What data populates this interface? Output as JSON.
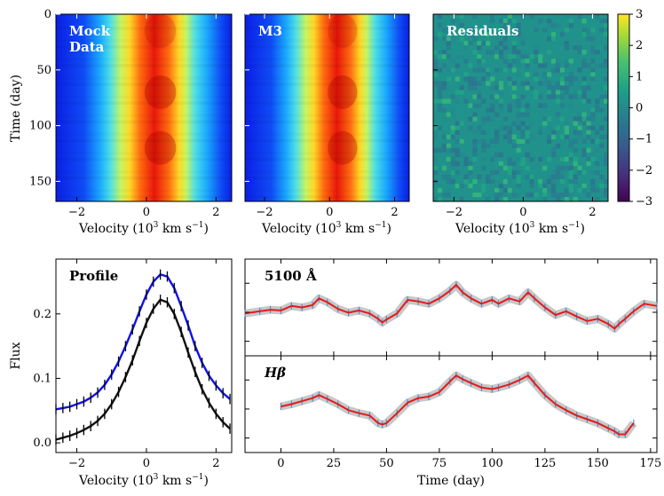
{
  "chart_data": [
    {
      "type": "heatmap",
      "panel": "mock",
      "label_lines": [
        "Mock",
        "Data"
      ],
      "xlabel": "Velocity (10",
      "xlabel_sup": "3",
      "xlabel_unit": " km s",
      "xlabel_unit_sup": "−1",
      "xlabel_close": ")",
      "ylabel": "Time (day)",
      "xlim": [
        -2.6,
        2.45
      ],
      "ylim": [
        168,
        0
      ],
      "xticks": [
        "−2",
        "0",
        "2"
      ],
      "yticks": [
        "0",
        "50",
        "100",
        "150"
      ],
      "colormap": "jet"
    },
    {
      "type": "heatmap",
      "panel": "model",
      "label_lines": [
        "M3"
      ],
      "xlim": [
        -2.6,
        2.45
      ],
      "ylim": [
        168,
        0
      ],
      "xticks": [
        "−2",
        "0",
        "2"
      ],
      "colormap": "jet"
    },
    {
      "type": "heatmap",
      "panel": "residuals",
      "label_lines": [
        "Residuals"
      ],
      "xlim": [
        -2.6,
        2.45
      ],
      "ylim": [
        168,
        0
      ],
      "xticks": [
        "−2",
        "0",
        "2"
      ],
      "colormap": "viridis",
      "colorbar_ticks": [
        "3",
        "2",
        "1",
        "0",
        "−1",
        "−2",
        "−3"
      ],
      "colorbar_range": [
        -3,
        3
      ]
    },
    {
      "type": "line",
      "panel": "profile",
      "title": "Profile",
      "ylabel": "Flux",
      "xlim": [
        -2.6,
        2.45
      ],
      "ylim": [
        -0.015,
        0.285
      ],
      "xticks": [
        "−2",
        "0",
        "2"
      ],
      "yticks": [
        "0.0",
        "0.1",
        "0.2"
      ],
      "x": [
        -2.6,
        -2.4,
        -2.2,
        -2.0,
        -1.8,
        -1.6,
        -1.4,
        -1.2,
        -1.0,
        -0.8,
        -0.6,
        -0.4,
        -0.2,
        0.0,
        0.2,
        0.4,
        0.6,
        0.8,
        1.0,
        1.2,
        1.4,
        1.6,
        1.8,
        2.0,
        2.2,
        2.4
      ],
      "series": [
        {
          "color": "#1010ee",
          "values": [
            0.052,
            0.054,
            0.056,
            0.06,
            0.064,
            0.07,
            0.078,
            0.09,
            0.106,
            0.126,
            0.15,
            0.176,
            0.204,
            0.23,
            0.25,
            0.261,
            0.258,
            0.24,
            0.212,
            0.182,
            0.15,
            0.124,
            0.104,
            0.089,
            0.077,
            0.068
          ]
        },
        {
          "color": "#111111",
          "values": [
            0.005,
            0.008,
            0.011,
            0.015,
            0.02,
            0.026,
            0.034,
            0.045,
            0.06,
            0.079,
            0.102,
            0.128,
            0.158,
            0.186,
            0.208,
            0.222,
            0.218,
            0.2,
            0.172,
            0.14,
            0.11,
            0.083,
            0.062,
            0.045,
            0.032,
            0.022
          ]
        }
      ]
    },
    {
      "type": "line",
      "panel": "light-curves",
      "xlabel": "Time (day)",
      "xlim": [
        -17,
        178
      ],
      "xticks": [
        "0",
        "25",
        "50",
        "75",
        "100",
        "125",
        "150",
        "175"
      ],
      "subplots": [
        {
          "title": "5100 Å",
          "ylim": [
            0,
            1
          ],
          "x": [
            -17,
            -10,
            -5,
            0,
            5,
            10,
            15,
            18,
            22,
            27,
            32,
            37,
            42,
            46,
            48,
            50,
            55,
            60,
            65,
            70,
            75,
            80,
            83,
            86,
            90,
            95,
            100,
            103,
            108,
            113,
            117,
            120,
            125,
            130,
            135,
            140,
            145,
            150,
            155,
            158,
            160,
            163,
            167,
            172,
            178
          ],
          "values": [
            0.42,
            0.45,
            0.47,
            0.46,
            0.52,
            0.5,
            0.53,
            0.62,
            0.57,
            0.48,
            0.43,
            0.46,
            0.42,
            0.35,
            0.3,
            0.34,
            0.42,
            0.6,
            0.58,
            0.55,
            0.62,
            0.72,
            0.8,
            0.7,
            0.62,
            0.55,
            0.6,
            0.55,
            0.62,
            0.58,
            0.7,
            0.62,
            0.5,
            0.4,
            0.45,
            0.38,
            0.32,
            0.35,
            0.28,
            0.22,
            0.28,
            0.35,
            0.45,
            0.55,
            0.52
          ]
        },
        {
          "title": "Hβ",
          "ylim": [
            0,
            1
          ],
          "x": [
            0,
            5,
            10,
            15,
            18,
            22,
            27,
            32,
            37,
            42,
            46,
            48,
            50,
            55,
            60,
            65,
            70,
            75,
            80,
            83,
            86,
            90,
            95,
            100,
            103,
            108,
            113,
            117,
            120,
            125,
            130,
            135,
            140,
            145,
            150,
            155,
            158,
            160,
            163,
            167
          ],
          "values": [
            0.47,
            0.5,
            0.54,
            0.58,
            0.62,
            0.57,
            0.5,
            0.42,
            0.38,
            0.35,
            0.25,
            0.23,
            0.25,
            0.38,
            0.52,
            0.58,
            0.6,
            0.66,
            0.8,
            0.88,
            0.83,
            0.78,
            0.72,
            0.7,
            0.72,
            0.76,
            0.82,
            0.88,
            0.78,
            0.62,
            0.5,
            0.42,
            0.35,
            0.3,
            0.25,
            0.18,
            0.14,
            0.1,
            0.1,
            0.25
          ]
        }
      ]
    }
  ]
}
